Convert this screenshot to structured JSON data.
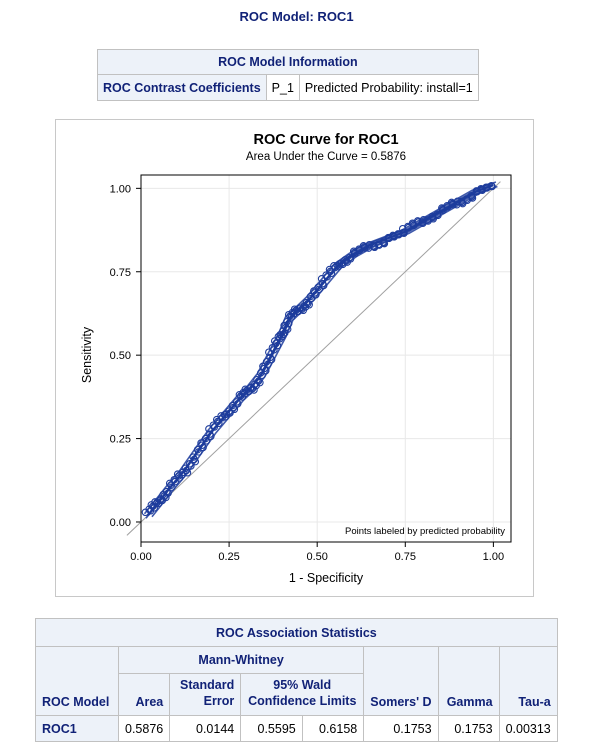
{
  "page": {
    "title": "ROC Model: ROC1"
  },
  "model_info": {
    "caption": "ROC Model Information",
    "row_label": "ROC Contrast Coefficients",
    "variable": "P_1",
    "description": "Predicted Probability: install=1"
  },
  "chart_data": {
    "type": "line",
    "title": "ROC Curve for ROC1",
    "subtitle": "Area Under the Curve = 0.5876",
    "xlabel": "1 - Specificity",
    "ylabel": "Sensitivity",
    "xlim": [
      0,
      1.05
    ],
    "ylim": [
      -0.06,
      1.04
    ],
    "xticks": [
      "0.00",
      "0.25",
      "0.50",
      "0.75",
      "1.00"
    ],
    "yticks": [
      "0.00",
      "0.25",
      "0.50",
      "0.75",
      "1.00"
    ],
    "grid": true,
    "reference_line": true,
    "annotation": "Points labeled by predicted probability",
    "series": [
      {
        "x": [
          0.02,
          0.05,
          0.08,
          0.12,
          0.16,
          0.2,
          0.24,
          0.28,
          0.31,
          0.34,
          0.37,
          0.4,
          0.42,
          0.45,
          0.48,
          0.52,
          0.56,
          0.6,
          0.65,
          0.7,
          0.75,
          0.8,
          0.85,
          0.9,
          0.95,
          1.0
        ],
        "y": [
          0.02,
          0.06,
          0.1,
          0.15,
          0.21,
          0.27,
          0.32,
          0.37,
          0.4,
          0.44,
          0.5,
          0.56,
          0.61,
          0.64,
          0.67,
          0.72,
          0.77,
          0.8,
          0.83,
          0.85,
          0.87,
          0.9,
          0.93,
          0.96,
          0.99,
          1.01
        ]
      }
    ],
    "colors": {
      "curve": "#1d3c9c",
      "reference": "#a0a0a0",
      "grid": "#e8e8e8"
    }
  },
  "association_stats": {
    "caption": "ROC Association Statistics",
    "group_header": "Mann-Whitney",
    "columns": {
      "model": "ROC Model",
      "area": "Area",
      "stderr": "Standard Error",
      "wald": "95% Wald Confidence Limits",
      "somers": "Somers' D",
      "gamma": "Gamma",
      "taua": "Tau-a"
    },
    "row": {
      "model": "ROC1",
      "area": "0.5876",
      "stderr": "0.0144",
      "lower": "0.5595",
      "upper": "0.6158",
      "somers": "0.1753",
      "gamma": "0.1753",
      "taua": "0.00313"
    }
  }
}
